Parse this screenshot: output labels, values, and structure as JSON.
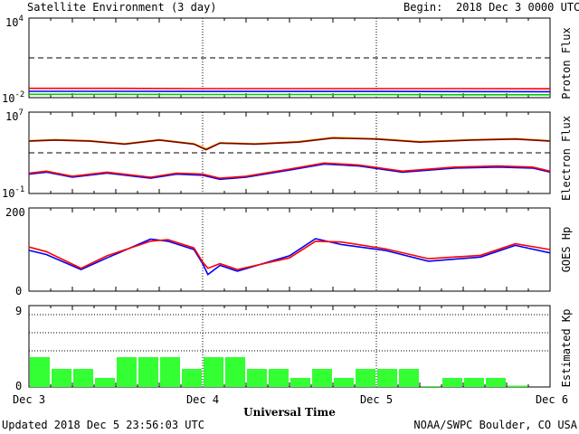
{
  "header": {
    "title": "Satellite Environment (3 day)",
    "begin_label": "Begin:",
    "begin_value": "2018 Dec 3 0000 UTC"
  },
  "footer": {
    "updated": "Updated 2018 Dec  5 23:56:03 UTC",
    "credit": "NOAA/SWPC Boulder, CO USA"
  },
  "chart_data": [
    {
      "type": "line",
      "scale": "log",
      "ylabel": "Proton Flux",
      "ylim_exponent": [
        -2,
        4
      ],
      "ytick_labels": [
        {
          "base": "10",
          "exp": "4"
        },
        {
          "base": "10",
          "exp": "-2"
        }
      ],
      "threshold_exponent": 1,
      "x_days": [
        0,
        3
      ],
      "series": [
        {
          "color": "#ff0000",
          "x": [
            0,
            0.5,
            1,
            1.5,
            2,
            2.5,
            3
          ],
          "y_exponent": [
            -1.3,
            -1.3,
            -1.32,
            -1.32,
            -1.32,
            -1.32,
            -1.33
          ]
        },
        {
          "color": "#0000ff",
          "x": [
            0,
            0.5,
            1,
            1.5,
            2,
            2.5,
            3
          ],
          "y_exponent": [
            -1.52,
            -1.52,
            -1.53,
            -1.53,
            -1.53,
            -1.54,
            -1.55
          ]
        },
        {
          "color": "#00cc00",
          "x": [
            0,
            0.5,
            1,
            1.5,
            2,
            2.5,
            3
          ],
          "y_exponent": [
            -1.75,
            -1.75,
            -1.76,
            -1.76,
            -1.77,
            -1.78,
            -1.78
          ]
        }
      ]
    },
    {
      "type": "line",
      "scale": "log",
      "ylabel": "Electron Flux",
      "ylim_exponent": [
        -1,
        7
      ],
      "ytick_labels": [
        {
          "base": "10",
          "exp": "7"
        },
        {
          "base": "10",
          "exp": "-1"
        }
      ],
      "threshold_exponent": 3,
      "x_days": [
        0,
        3
      ],
      "series": [
        {
          "color": "#ffa500",
          "x": [
            0,
            0.15,
            0.35,
            0.55,
            0.75,
            0.95,
            1.02,
            1.1,
            1.3,
            1.55,
            1.75,
            2.0,
            2.25,
            2.55,
            2.8,
            3.0
          ],
          "y_exponent": [
            4.2,
            4.3,
            4.2,
            3.9,
            4.3,
            3.9,
            3.4,
            4.0,
            3.9,
            4.1,
            4.5,
            4.4,
            4.1,
            4.3,
            4.4,
            4.2
          ]
        },
        {
          "color": "#7a0000",
          "x": [
            0,
            0.15,
            0.35,
            0.55,
            0.75,
            0.95,
            1.02,
            1.1,
            1.3,
            1.55,
            1.75,
            2.0,
            2.25,
            2.55,
            2.8,
            3.0
          ],
          "y_exponent": [
            4.15,
            4.25,
            4.15,
            3.85,
            4.25,
            3.85,
            3.3,
            3.95,
            3.85,
            4.05,
            4.45,
            4.35,
            4.05,
            4.25,
            4.35,
            4.15
          ]
        },
        {
          "color": "#0000ff",
          "x": [
            0,
            0.1,
            0.25,
            0.45,
            0.7,
            0.85,
            1.0,
            1.1,
            1.25,
            1.5,
            1.7,
            1.9,
            2.15,
            2.45,
            2.7,
            2.9,
            3.0
          ],
          "y_exponent": [
            0.9,
            1.1,
            0.6,
            1.0,
            0.5,
            0.9,
            0.8,
            0.4,
            0.6,
            1.3,
            1.9,
            1.7,
            1.1,
            1.5,
            1.6,
            1.5,
            1.1
          ]
        },
        {
          "color": "#ff0000",
          "x": [
            0,
            0.1,
            0.25,
            0.45,
            0.7,
            0.85,
            1.0,
            1.1,
            1.25,
            1.5,
            1.7,
            1.9,
            2.15,
            2.45,
            2.7,
            2.9,
            3.0
          ],
          "y_exponent": [
            1.0,
            1.2,
            0.7,
            1.1,
            0.6,
            1.0,
            0.9,
            0.5,
            0.7,
            1.4,
            2.0,
            1.8,
            1.2,
            1.6,
            1.7,
            1.6,
            1.2
          ]
        }
      ]
    },
    {
      "type": "line",
      "scale": "linear",
      "ylabel": "GOES Hp",
      "ylim": [
        0,
        200
      ],
      "ytick_labels": [
        "200",
        "0"
      ],
      "x_days": [
        0,
        3
      ],
      "series": [
        {
          "color": "#0000ff",
          "x": [
            0,
            0.1,
            0.3,
            0.45,
            0.7,
            0.8,
            0.95,
            1.0,
            1.03,
            1.1,
            1.2,
            1.5,
            1.65,
            1.8,
            2.05,
            2.3,
            2.6,
            2.8,
            3.0
          ],
          "y": [
            98,
            88,
            52,
            80,
            125,
            120,
            100,
            66,
            40,
            62,
            48,
            85,
            126,
            112,
            98,
            72,
            82,
            110,
            92
          ]
        },
        {
          "color": "#ff0000",
          "x": [
            0,
            0.1,
            0.3,
            0.45,
            0.7,
            0.8,
            0.95,
            1.0,
            1.03,
            1.1,
            1.2,
            1.5,
            1.65,
            1.8,
            2.05,
            2.3,
            2.6,
            2.8,
            3.0
          ],
          "y": [
            106,
            95,
            55,
            85,
            120,
            124,
            104,
            70,
            55,
            66,
            52,
            80,
            120,
            118,
            102,
            78,
            86,
            114,
            100
          ]
        }
      ]
    },
    {
      "type": "bar",
      "ylabel": "Estimated Kp",
      "ylim": [
        0,
        9
      ],
      "ytick_labels": [
        "9",
        "0"
      ],
      "dotted_levels": [
        4,
        6,
        8
      ],
      "bar_color": "#33ff33",
      "interval_hours": 3,
      "values": [
        3.3,
        2,
        2,
        1,
        3.3,
        3.3,
        3.3,
        2,
        3.3,
        3.3,
        2,
        2,
        1,
        2,
        1,
        2,
        2,
        2,
        0.1,
        1,
        1,
        1,
        0.15,
        0
      ],
      "xticks": [
        "Dec 3",
        "Dec 4",
        "Dec 5",
        "Dec 6"
      ],
      "xlabel": "Universal Time"
    }
  ]
}
